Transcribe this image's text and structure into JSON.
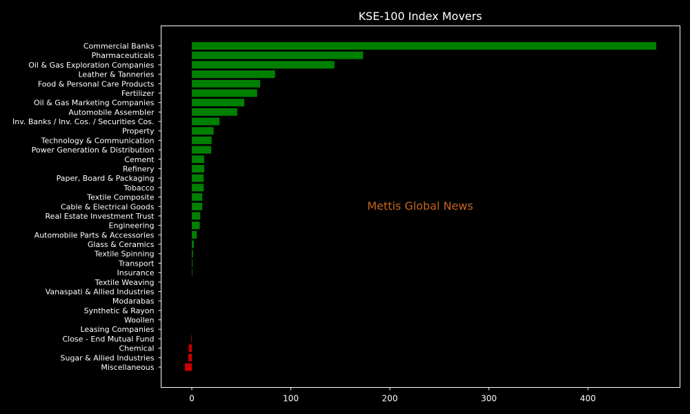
{
  "chart_data": {
    "type": "bar",
    "orientation": "horizontal",
    "title": "KSE-100 Index Movers",
    "watermark": "Mettis Global News",
    "xlabel": "",
    "ylabel": "",
    "xlim": [
      -31,
      493
    ],
    "xticks": [
      0,
      100,
      200,
      300,
      400
    ],
    "grid": false,
    "colors": {
      "positive": "#008000",
      "negative": "#cc0000",
      "background": "#000000",
      "axes": "#ffffff",
      "watermark": "#c8641e"
    },
    "categories": [
      "Commercial Banks",
      "Pharmaceuticals",
      "Oil & Gas Exploration Companies",
      "Leather & Tanneries",
      "Food & Personal Care Products",
      "Fertilizer",
      "Oil & Gas Marketing Companies",
      "Automobile Assembler",
      "Inv. Banks / Inv. Cos. / Securities Cos.",
      "Property",
      "Technology & Communication",
      "Power Generation & Distribution",
      "Cement",
      "Refinery",
      "Paper, Board & Packaging",
      "Tobacco",
      "Textile Composite",
      "Cable & Electrical Goods",
      "Real Estate Investment Trust",
      "Engineering",
      "Automobile Parts & Accessories",
      "Glass & Ceramics",
      "Textile Spinning",
      "Transport",
      "Insurance",
      "Textile Weaving",
      "Vanaspati & Allied Industries",
      "Modarabas",
      "Synthetic & Rayon",
      "Woollen",
      "Leasing Companies",
      "Close - End Mutual Fund",
      "Chemical",
      "Sugar & Allied Industries",
      "Miscellaneous"
    ],
    "values": [
      469,
      173,
      144,
      84,
      69,
      66,
      53,
      46,
      28,
      22,
      20,
      19.5,
      12.5,
      12.5,
      12,
      12,
      10.5,
      10.5,
      8.5,
      8,
      5,
      2,
      1.2,
      0.7,
      0.5,
      0,
      0,
      0,
      0,
      0,
      0,
      -0.5,
      -3,
      -3.5,
      -7
    ]
  }
}
